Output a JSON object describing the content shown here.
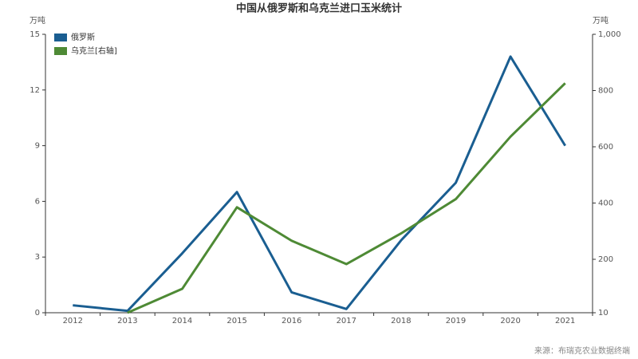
{
  "chart_data": {
    "type": "line",
    "title": "中国从俄罗斯和乌克兰进口玉米统计",
    "y_label": "万吨",
    "y2_label": "万吨",
    "categories": [
      "2012",
      "2013",
      "2014",
      "2015",
      "2016",
      "2017",
      "2018",
      "2019",
      "2020",
      "2021"
    ],
    "series": [
      {
        "name": "俄罗斯",
        "color": "#1a5e91",
        "values": [
          0.4,
          0.1,
          3.2,
          6.5,
          1.1,
          0.2,
          3.9,
          7.0,
          13.8,
          9.0
        ]
      },
      {
        "name": "乌克兰[右轴]",
        "color": "#4e8a35",
        "axis": "y2",
        "values": [
          null,
          10,
          95,
          385,
          266,
          183,
          292,
          414,
          636,
          826
        ]
      }
    ],
    "ylim": [
      0,
      15
    ],
    "yticks": [
      0,
      3,
      6,
      9,
      12,
      15
    ],
    "y2lim": [
      10,
      1000
    ],
    "y2ticks": [
      10,
      200,
      400,
      600,
      800,
      {
        "value": 1000,
        "label": "1,000"
      }
    ],
    "legend": "top-left",
    "source": "来源：布瑞克农业数据终端"
  }
}
